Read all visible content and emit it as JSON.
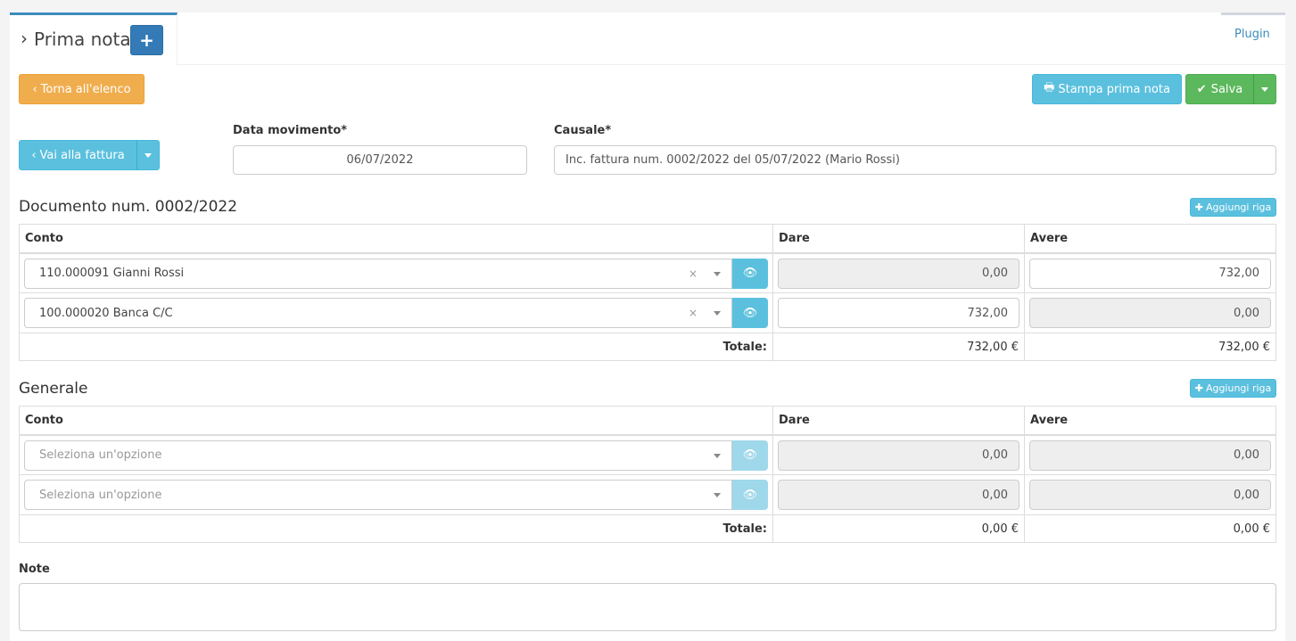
{
  "header": {
    "title": "Prima nota",
    "add_icon": "plus-icon",
    "plugin_tab": "Plugin"
  },
  "toolbar": {
    "back": "Torna all'elenco",
    "print": "Stampa prima nota",
    "save": "Salva",
    "goto_invoice": "Vai alla fattura"
  },
  "form": {
    "date_label": "Data movimento*",
    "date_value": "06/07/2022",
    "causale_label": "Causale*",
    "causale_value": "Inc. fattura num. 0002/2022 del 05/07/2022 (Mario Rossi)",
    "note_label": "Note",
    "note_value": ""
  },
  "doc_section": {
    "title": "Documento num. 0002/2022",
    "add_row": "Aggiungi riga",
    "columns": [
      "Conto",
      "Dare",
      "Avere"
    ],
    "rows": [
      {
        "conto": "110.000091 Gianni Rossi",
        "dare": "0,00",
        "avere": "732,00"
      },
      {
        "conto": "100.000020 Banca C/C",
        "dare": "732,00",
        "avere": "0,00"
      }
    ],
    "total_label": "Totale:",
    "total_dare": "732,00 €",
    "total_avere": "732,00 €"
  },
  "gen_section": {
    "title": "Generale",
    "add_row": "Aggiungi riga",
    "columns": [
      "Conto",
      "Dare",
      "Avere"
    ],
    "rows": [
      {
        "conto": "Seleziona un'opzione",
        "dare": "0,00",
        "avere": "0,00"
      },
      {
        "conto": "Seleziona un'opzione",
        "dare": "0,00",
        "avere": "0,00"
      }
    ],
    "total_label": "Totale:",
    "total_dare": "0,00 €",
    "total_avere": "0,00 €"
  },
  "colors": {
    "primary": "#337ab7",
    "info": "#5bc0de",
    "success": "#5cb85c",
    "warning": "#f0ad4e"
  }
}
